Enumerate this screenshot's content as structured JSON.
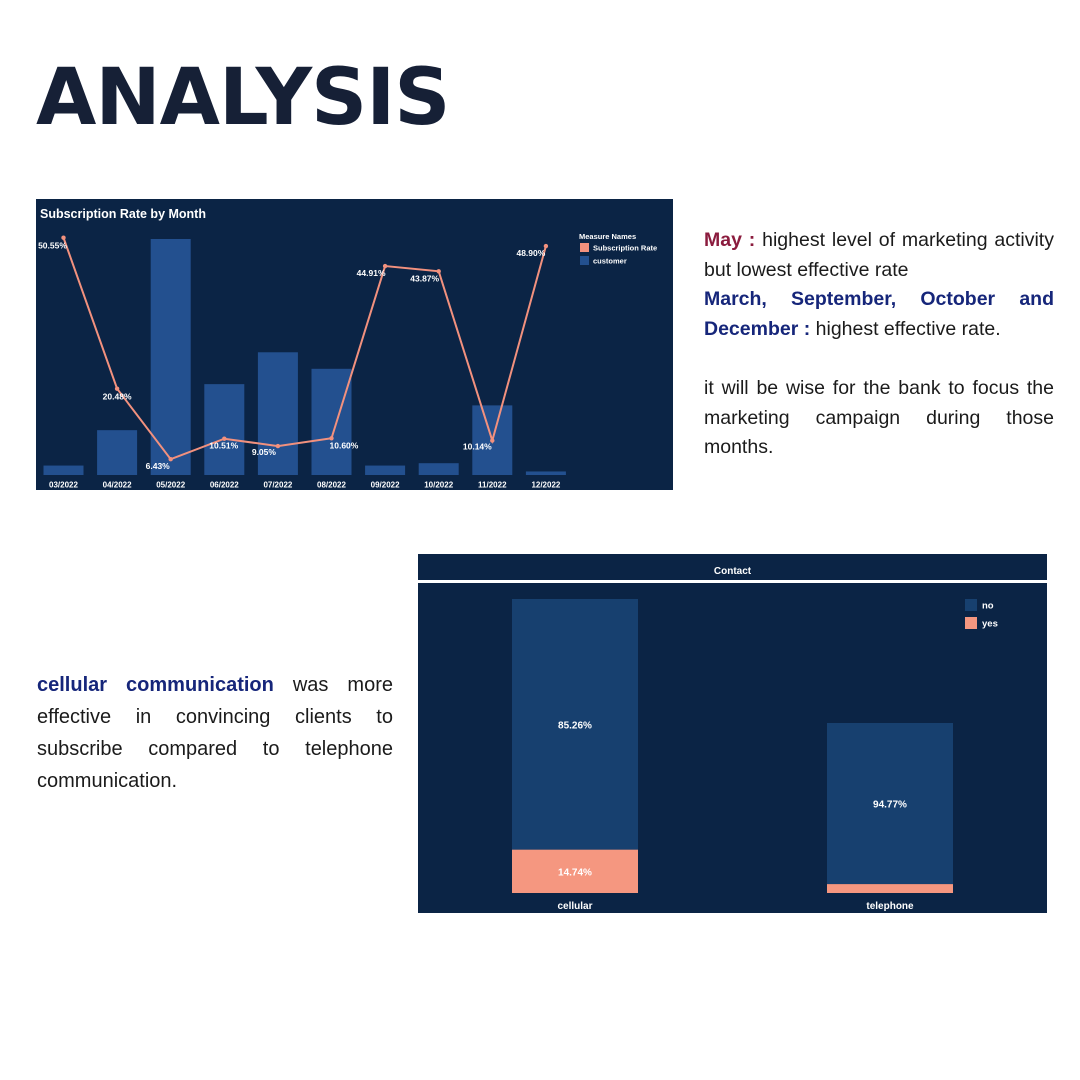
{
  "page": {
    "title": "ANALYSIS"
  },
  "text1": {
    "p1_highlight": "May :",
    "p1_rest": " highest level of marketing activity but lowest effective rate",
    "p2_highlight": "March, September, October and December :",
    "p2_rest": " highest effective rate.",
    "p3": "it will be wise for the bank to focus the marketing campaign during those months."
  },
  "text2": {
    "highlight": "cellular communication",
    "rest": " was more effective in convincing clients to subscribe compared to telephone communication."
  },
  "colors": {
    "background": "#0b2445",
    "bar": "#23508f",
    "line": "#f2917e",
    "no": "#17406f",
    "yes": "#f59780"
  },
  "chart_data": [
    {
      "type": "bar",
      "title": "Subscription Rate by Month",
      "legend_title": "Measure Names",
      "legend_position": "top-right",
      "categories": [
        "03/2022",
        "04/2022",
        "05/2022",
        "06/2022",
        "07/2022",
        "08/2022",
        "09/2022",
        "10/2022",
        "11/2022",
        "12/2022"
      ],
      "series": [
        {
          "name": "customer",
          "type": "bar",
          "values": [
            0.04,
            0.19,
            1.0,
            0.385,
            0.52,
            0.45,
            0.04,
            0.05,
            0.295,
            0.015
          ]
        },
        {
          "name": "Subscription Rate",
          "type": "line",
          "values": [
            50.55,
            20.48,
            6.43,
            10.51,
            9.05,
            10.6,
            44.91,
            43.87,
            10.14,
            48.9
          ],
          "labels": [
            "50.55%",
            "20.48%",
            "6.43%",
            "10.51%",
            "9.05%",
            "10.60%",
            "44.91%",
            "43.87%",
            "10.14%",
            "48.90%"
          ]
        }
      ],
      "grid": false
    },
    {
      "type": "bar",
      "stacked": true,
      "title": "Contact",
      "legend_position": "top-right",
      "categories": [
        "cellular",
        "telephone"
      ],
      "series": [
        {
          "name": "no",
          "values": [
            85.26,
            94.77
          ],
          "labels": [
            "85.26%",
            "94.77%"
          ]
        },
        {
          "name": "yes",
          "values": [
            14.74,
            5.23
          ],
          "labels": [
            "14.74%",
            ""
          ]
        }
      ],
      "grid": false
    }
  ]
}
